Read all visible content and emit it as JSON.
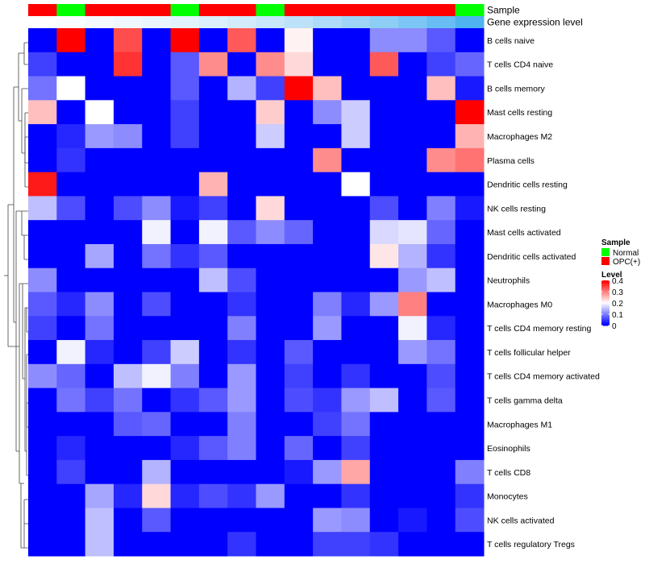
{
  "chart_data": {
    "type": "heatmap",
    "annotation_rows": [
      {
        "label": "Sample",
        "values": [
          "OPC(+)",
          "Normal",
          "OPC(+)",
          "OPC(+)",
          "OPC(+)",
          "Normal",
          "OPC(+)",
          "OPC(+)",
          "Normal",
          "OPC(+)",
          "OPC(+)",
          "OPC(+)",
          "OPC(+)",
          "OPC(+)",
          "OPC(+)",
          "Normal"
        ]
      },
      {
        "label": "Gene expression level",
        "values": [
          0.0,
          0.03,
          0.06,
          0.09,
          0.12,
          0.16,
          0.2,
          0.25,
          0.31,
          0.38,
          0.46,
          0.55,
          0.65,
          0.75,
          0.86,
          1.0
        ]
      }
    ],
    "rows": [
      "B cells naive",
      "T cells CD4 naive",
      "B cells memory",
      "Mast cells resting",
      "Macrophages M2",
      "Plasma cells",
      "Dendritic cells resting",
      "NK cells resting",
      "Mast cells activated",
      "Dendritic cells activated",
      "Neutrophils",
      "Macrophages M0",
      "T cells CD4 memory resting",
      "T cells follicular helper",
      "T cells CD4 memory activated",
      "T cells gamma delta",
      "Macrophages M1",
      "Eosinophils",
      "T cells CD8",
      "Monocytes",
      "NK cells activated",
      "T cells regulatory  Tregs"
    ],
    "values": [
      [
        0.0,
        0.4,
        0.0,
        0.34,
        0.0,
        0.4,
        0.0,
        0.33,
        0.0,
        0.21,
        0.0,
        0.0,
        0.11,
        0.11,
        0.07,
        0.0
      ],
      [
        0.05,
        0.0,
        0.0,
        0.36,
        0.0,
        0.07,
        0.29,
        0.0,
        0.29,
        0.23,
        0.0,
        0.0,
        0.33,
        0.0,
        0.05,
        0.08
      ],
      [
        0.09,
        0.2,
        0.0,
        0.0,
        0.0,
        0.07,
        0.0,
        0.14,
        0.05,
        0.4,
        0.25,
        0.0,
        0.0,
        0.0,
        0.25,
        0.02
      ],
      [
        0.25,
        0.0,
        0.2,
        0.0,
        0.0,
        0.05,
        0.0,
        0.0,
        0.24,
        0.0,
        0.11,
        0.16,
        0.0,
        0.0,
        0.0,
        0.4
      ],
      [
        0.0,
        0.03,
        0.12,
        0.11,
        0.0,
        0.05,
        0.0,
        0.0,
        0.16,
        0.0,
        0.0,
        0.16,
        0.0,
        0.0,
        0.0,
        0.26
      ],
      [
        0.0,
        0.04,
        0.0,
        0.0,
        0.0,
        0.0,
        0.0,
        0.0,
        0.0,
        0.0,
        0.29,
        0.0,
        0.0,
        0.0,
        0.29,
        0.31
      ],
      [
        0.38,
        0.0,
        0.0,
        0.0,
        0.0,
        0.0,
        0.26,
        0.0,
        0.0,
        0.0,
        0.0,
        0.2,
        0.0,
        0.0,
        0.0,
        0.0
      ],
      [
        0.15,
        0.06,
        0.0,
        0.06,
        0.11,
        0.02,
        0.05,
        0.0,
        0.23,
        0.0,
        0.0,
        0.0,
        0.06,
        0.0,
        0.1,
        0.02
      ],
      [
        0.0,
        0.0,
        0.0,
        0.0,
        0.19,
        0.0,
        0.19,
        0.07,
        0.11,
        0.08,
        0.0,
        0.0,
        0.17,
        0.18,
        0.08,
        0.0
      ],
      [
        0.0,
        0.0,
        0.13,
        0.0,
        0.09,
        0.04,
        0.07,
        0.0,
        0.0,
        0.0,
        0.0,
        0.0,
        0.22,
        0.14,
        0.04,
        0.0
      ],
      [
        0.11,
        0.0,
        0.0,
        0.0,
        0.0,
        0.0,
        0.15,
        0.06,
        0.0,
        0.0,
        0.0,
        0.0,
        0.0,
        0.12,
        0.15,
        0.0
      ],
      [
        0.07,
        0.03,
        0.11,
        0.0,
        0.06,
        0.0,
        0.0,
        0.04,
        0.0,
        0.0,
        0.1,
        0.03,
        0.12,
        0.3,
        0.0,
        0.0
      ],
      [
        0.05,
        0.0,
        0.09,
        0.0,
        0.0,
        0.0,
        0.0,
        0.1,
        0.0,
        0.0,
        0.12,
        0.0,
        0.0,
        0.19,
        0.03,
        0.0
      ],
      [
        0.0,
        0.19,
        0.03,
        0.0,
        0.05,
        0.16,
        0.0,
        0.04,
        0.0,
        0.07,
        0.0,
        0.0,
        0.0,
        0.12,
        0.09,
        0.0
      ],
      [
        0.11,
        0.08,
        0.0,
        0.15,
        0.19,
        0.1,
        0.0,
        0.12,
        0.0,
        0.05,
        0.0,
        0.04,
        0.0,
        0.0,
        0.06,
        0.0
      ],
      [
        0.0,
        0.09,
        0.05,
        0.09,
        0.0,
        0.04,
        0.07,
        0.12,
        0.0,
        0.06,
        0.04,
        0.12,
        0.15,
        0.0,
        0.07,
        0.0
      ],
      [
        0.0,
        0.0,
        0.0,
        0.07,
        0.08,
        0.0,
        0.0,
        0.1,
        0.0,
        0.0,
        0.05,
        0.09,
        0.0,
        0.0,
        0.0,
        0.0
      ],
      [
        0.0,
        0.03,
        0.0,
        0.0,
        0.0,
        0.03,
        0.07,
        0.1,
        0.0,
        0.08,
        0.0,
        0.05,
        0.0,
        0.0,
        0.0,
        0.0
      ],
      [
        0.0,
        0.05,
        0.0,
        0.0,
        0.14,
        0.0,
        0.0,
        0.0,
        0.0,
        0.02,
        0.12,
        0.27,
        0.0,
        0.0,
        0.0,
        0.1
      ],
      [
        0.0,
        0.0,
        0.13,
        0.03,
        0.23,
        0.03,
        0.06,
        0.04,
        0.12,
        0.0,
        0.0,
        0.04,
        0.0,
        0.0,
        0.0,
        0.04
      ],
      [
        0.0,
        0.0,
        0.15,
        0.0,
        0.07,
        0.0,
        0.0,
        0.0,
        0.0,
        0.0,
        0.12,
        0.11,
        0.0,
        0.02,
        0.0,
        0.06
      ],
      [
        0.0,
        0.0,
        0.15,
        0.0,
        0.0,
        0.0,
        0.0,
        0.04,
        0.0,
        0.0,
        0.05,
        0.05,
        0.04,
        0.0,
        0.0,
        0.0
      ]
    ],
    "color_scale": {
      "min": 0,
      "max": 0.4,
      "stops": [
        {
          "value": 0.0,
          "color": "#0000ff"
        },
        {
          "value": 0.2,
          "color": "#ffffff"
        },
        {
          "value": 0.4,
          "color": "#ff0000"
        }
      ]
    },
    "legend": {
      "sample_title": "Sample",
      "sample_items": [
        {
          "label": "Normal",
          "color": "#00ff00"
        },
        {
          "label": "OPC(+)",
          "color": "#ff0000"
        }
      ],
      "level_title": "Level",
      "level_ticks": [
        {
          "label": "0.4",
          "value": 0.4
        },
        {
          "label": "0.3",
          "value": 0.3
        },
        {
          "label": "0.2",
          "value": 0.2
        },
        {
          "label": "0.1",
          "value": 0.1
        },
        {
          "label": "0",
          "value": 0.0
        }
      ]
    },
    "annotation_colors": {
      "Normal": "#00ff00",
      "OPC(+)": "#ff0000",
      "expr_low": "#ffffff",
      "expr_high": "#4fb3f0"
    }
  }
}
